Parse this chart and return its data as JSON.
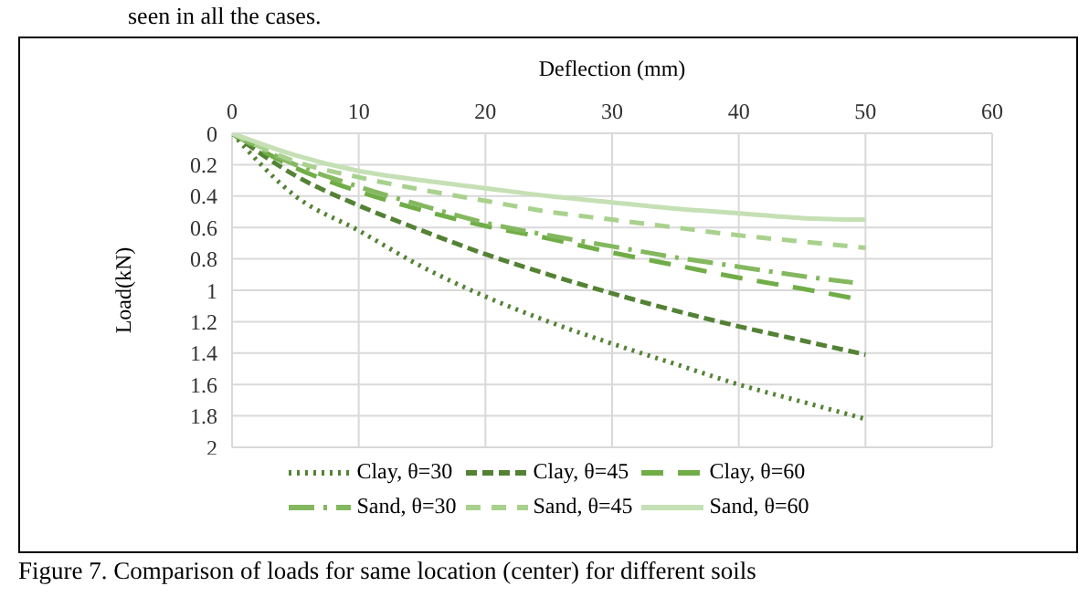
{
  "chart_data": {
    "type": "line",
    "xlabel": "Deflection (mm)",
    "ylabel": "Load(kN)",
    "xlim": [
      0,
      60
    ],
    "xticks": [
      0,
      10,
      20,
      30,
      40,
      50,
      60
    ],
    "ylim": [
      2,
      0
    ],
    "yticks": [
      0,
      0.2,
      0.4,
      0.6,
      0.8,
      1,
      1.2,
      1.4,
      1.6,
      1.8,
      2
    ],
    "grid": true,
    "legend": "bottom",
    "marker": "none",
    "annotations": [
      "seen in all the cases.",
      "Figure 7. Comparison of loads for same location (center) for different soils"
    ],
    "series": [
      {
        "name": "Clay, θ=30",
        "color": "#548235",
        "line_style": "dotted",
        "x": [
          0,
          5,
          10,
          15,
          20,
          25,
          30,
          35,
          40,
          45,
          50
        ],
        "values": [
          0,
          0.4,
          0.62,
          0.85,
          1.04,
          1.2,
          1.34,
          1.47,
          1.6,
          1.71,
          1.82
        ]
      },
      {
        "name": "Clay, θ=45",
        "color": "#548235",
        "line_style": "dashed",
        "x": [
          0,
          5,
          10,
          15,
          20,
          25,
          30,
          35,
          40,
          45,
          50
        ],
        "values": [
          0,
          0.27,
          0.46,
          0.62,
          0.77,
          0.9,
          1.02,
          1.13,
          1.23,
          1.32,
          1.41
        ]
      },
      {
        "name": "Clay, θ=60",
        "color": "#70ad47",
        "line_style": "dashed",
        "x": [
          0,
          5,
          10,
          15,
          20,
          25,
          30,
          35,
          40,
          45,
          49
        ],
        "values": [
          0,
          0.22,
          0.37,
          0.49,
          0.59,
          0.67,
          0.76,
          0.84,
          0.92,
          0.99,
          1.05
        ]
      },
      {
        "name": "Sand, θ=30",
        "color": "#84b85f",
        "line_style": "dashed",
        "x": [
          0,
          5,
          10,
          15,
          20,
          25,
          30,
          35,
          40,
          45,
          49
        ],
        "values": [
          0,
          0.2,
          0.34,
          0.46,
          0.57,
          0.65,
          0.72,
          0.79,
          0.85,
          0.91,
          0.95
        ]
      },
      {
        "name": "Sand, θ=45",
        "color": "#a9d18e",
        "line_style": "dashed",
        "x": [
          0,
          5,
          10,
          15,
          20,
          25,
          30,
          35,
          40,
          45,
          50
        ],
        "values": [
          0,
          0.18,
          0.28,
          0.36,
          0.43,
          0.5,
          0.55,
          0.6,
          0.65,
          0.69,
          0.73
        ]
      },
      {
        "name": "Sand, θ=60",
        "color": "#c5e0b4",
        "line_style": "solid",
        "x": [
          0,
          5,
          10,
          15,
          20,
          25,
          30,
          35,
          40,
          45,
          50
        ],
        "values": [
          0,
          0.14,
          0.24,
          0.3,
          0.35,
          0.4,
          0.44,
          0.48,
          0.51,
          0.54,
          0.55
        ]
      }
    ]
  }
}
